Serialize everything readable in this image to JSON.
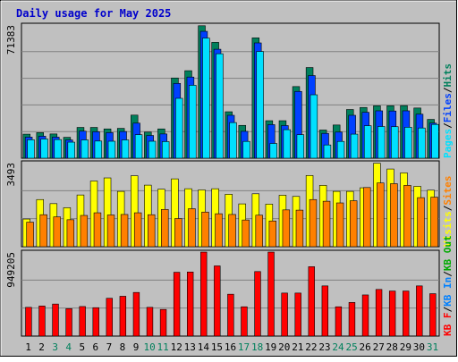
{
  "colors": {
    "background": "#c0c0c0",
    "panel": "#c0c0c0",
    "title": "#0000cc",
    "hits": "#00805c",
    "files": "#0040ff",
    "pages": "#00e0ff",
    "visits": "#ffff00",
    "sites": "#ff8000",
    "kbin": "#0080ff",
    "kbout": "#00aa00",
    "kbf": "#ff0000",
    "weekend": "#00805c",
    "weekday": "#000000",
    "grid": "#808080"
  },
  "chart_data": {
    "type": "bar",
    "title": "Daily usage for May 2025",
    "x": [
      "1",
      "2",
      "3",
      "4",
      "5",
      "6",
      "7",
      "8",
      "9",
      "10",
      "11",
      "12",
      "13",
      "14",
      "15",
      "16",
      "17",
      "18",
      "19",
      "20",
      "21",
      "22",
      "23",
      "24",
      "25",
      "26",
      "27",
      "28",
      "29",
      "30",
      "31"
    ],
    "weekend_days": [
      "3",
      "4",
      "10",
      "11",
      "17",
      "18",
      "24",
      "25",
      "31"
    ],
    "panels": [
      {
        "name": "hits_files_pages",
        "max_label": "71383",
        "ylim": [
          0,
          71383
        ],
        "legend": [
          "Pages",
          "/",
          "Files",
          "/",
          "Hits"
        ],
        "series": [
          {
            "name": "Hits",
            "values": [
              12900,
              13700,
              13000,
              11200,
              16500,
              16500,
              15700,
              16000,
              23100,
              14000,
              15700,
              43000,
              46900,
              71000,
              62100,
              24900,
              17600,
              64500,
              20100,
              20100,
              38400,
              48600,
              15100,
              17800,
              26100,
              27200,
              28100,
              28100,
              28200,
              26900,
              20800
            ]
          },
          {
            "name": "Files",
            "values": [
              11300,
              11800,
              11300,
              9800,
              14500,
              14200,
              13700,
              14300,
              18800,
              12200,
              13000,
              40100,
              43500,
              68000,
              58400,
              23000,
              14400,
              61800,
              18000,
              17500,
              35800,
              44300,
              13300,
              14000,
              23000,
              24600,
              25400,
              25300,
              25400,
              23600,
              18800
            ]
          },
          {
            "name": "Pages",
            "values": [
              9900,
              10300,
              10000,
              8600,
              9800,
              9200,
              9100,
              9800,
              12600,
              9100,
              8900,
              32100,
              39100,
              64400,
              56000,
              19100,
              9000,
              57200,
              7900,
              15300,
              12600,
              34000,
              7100,
              9000,
              12900,
              17400,
              17000,
              16900,
              16600,
              16200,
              18100
            ]
          }
        ]
      },
      {
        "name": "visits_sites",
        "max_label": "3493",
        "ylim": [
          0,
          3493
        ],
        "legend": [
          "Visits",
          "/",
          "Sites"
        ],
        "series": [
          {
            "name": "Visits",
            "values": [
              1150,
              1960,
              1790,
              1620,
              2150,
              2730,
              2860,
              2300,
              2950,
              2560,
              2390,
              2820,
              2410,
              2360,
              2410,
              2180,
              1780,
              2200,
              1770,
              2140,
              2090,
              2960,
              2550,
              2300,
              2300,
              2450,
              3470,
              3230,
              3070,
              2510,
              2350
            ]
          },
          {
            "name": "Sites",
            "values": [
              1020,
              1330,
              1240,
              1120,
              1300,
              1410,
              1320,
              1340,
              1410,
              1330,
              1550,
              1170,
              1580,
              1440,
              1370,
              1340,
              1110,
              1310,
              1070,
              1530,
              1520,
              1960,
              1890,
              1820,
              1910,
              2460,
              2650,
              2620,
              2550,
              2040,
              2060
            ]
          }
        ]
      },
      {
        "name": "kbf",
        "max_label": "949205",
        "ylim": [
          0,
          949205
        ],
        "legend": [
          "KB F",
          "/",
          "KB In",
          "/",
          "KB Out"
        ],
        "series": [
          {
            "name": "KB F",
            "values": [
              325000,
              340000,
              362000,
              310000,
              334000,
              321000,
              427000,
              450000,
              493000,
              325000,
              301000,
              721000,
              724000,
              949000,
              793000,
              473000,
              331000,
              729000,
              949000,
              486000,
              486000,
              784000,
              567000,
              331000,
              380000,
              465000,
              527000,
              509000,
              509000,
              567000,
              479000
            ]
          }
        ]
      }
    ]
  }
}
